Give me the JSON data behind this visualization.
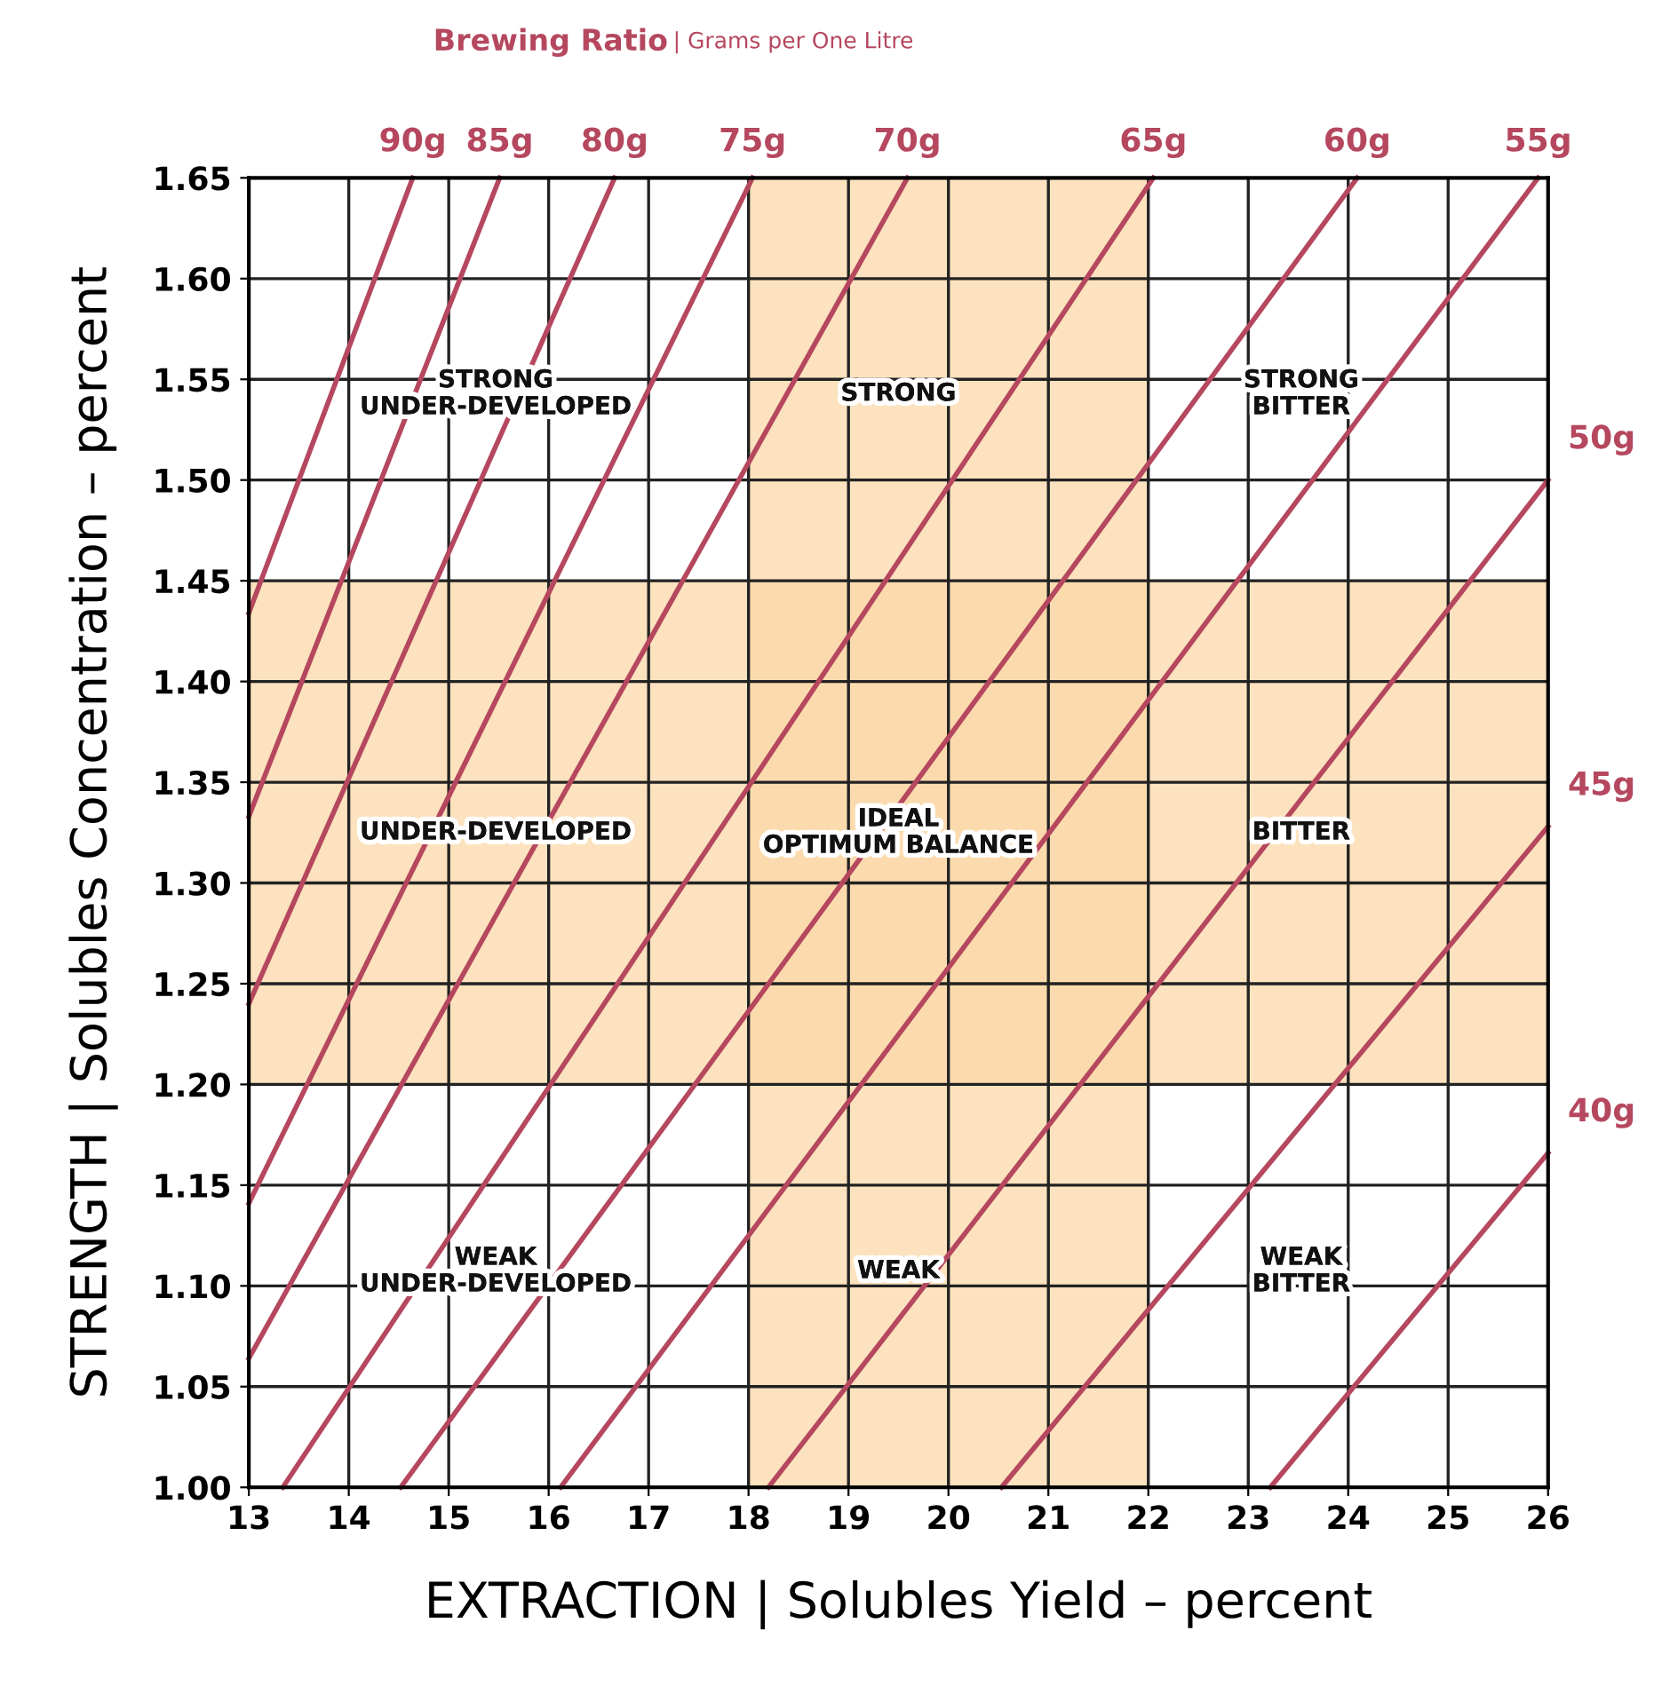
{
  "chart_data": {
    "type": "line",
    "title": "Brewing Ratio",
    "subtitle": "| Grams per One Litre",
    "xlabel": "EXTRACTION | Solubles Yield – percent",
    "ylabel": "STRENGTH | Solubles Concentration – percent",
    "xlim": [
      13,
      26
    ],
    "ylim": [
      1.0,
      1.65
    ],
    "xticks": [
      13,
      14,
      15,
      16,
      17,
      18,
      19,
      20,
      21,
      22,
      23,
      24,
      25,
      26
    ],
    "yticks": [
      {
        "value": 1.0,
        "label": "1.00"
      },
      1.05,
      {
        "value": 1.1,
        "label": "1.10"
      },
      1.15,
      {
        "value": 1.2,
        "label": "1.20"
      },
      1.25,
      {
        "value": 1.3,
        "label": "1.30"
      },
      1.35,
      {
        "value": 1.4,
        "label": "1.40"
      },
      1.45,
      {
        "value": 1.5,
        "label": "1.50"
      },
      1.55,
      {
        "value": 1.6,
        "label": "1.60"
      },
      1.65
    ],
    "grid": true,
    "legend": false,
    "marker": "none",
    "line_style": "solid",
    "series": [
      {
        "name": "90g",
        "color": "#b5475e",
        "x": [
          13,
          14.64
        ],
        "values": [
          1.434,
          1.65
        ]
      },
      {
        "name": "85g",
        "color": "#b5475e",
        "x": [
          13,
          15.51
        ],
        "values": [
          1.333,
          1.65
        ]
      },
      {
        "name": "80g",
        "color": "#b5475e",
        "x": [
          13,
          16.66
        ],
        "values": [
          1.24,
          1.65
        ]
      },
      {
        "name": "75g",
        "color": "#b5475e",
        "x": [
          13,
          18.04
        ],
        "values": [
          1.141,
          1.65
        ]
      },
      {
        "name": "70g",
        "color": "#b5475e",
        "x": [
          13,
          19.59
        ],
        "values": [
          1.064,
          1.65
        ]
      },
      {
        "name": "65g",
        "color": "#b5475e",
        "x": [
          13.34,
          22.05
        ],
        "values": [
          1.0,
          1.65
        ]
      },
      {
        "name": "60g",
        "color": "#b5475e",
        "x": [
          14.52,
          24.09
        ],
        "values": [
          1.0,
          1.65
        ]
      },
      {
        "name": "55g",
        "color": "#b5475e",
        "x": [
          16.12,
          25.9
        ],
        "values": [
          1.0,
          1.65
        ]
      },
      {
        "name": "50g",
        "color": "#b5475e",
        "x": [
          18.2,
          26
        ],
        "values": [
          1.0,
          1.5
        ]
      },
      {
        "name": "45g",
        "color": "#b5475e",
        "x": [
          20.53,
          26
        ],
        "values": [
          1.0,
          1.328
        ]
      },
      {
        "name": "40g",
        "color": "#b5475e",
        "x": [
          23.22,
          26
        ],
        "values": [
          1.0,
          1.166
        ]
      }
    ],
    "bands": [
      {
        "axis": "x",
        "from": 18,
        "to": 22,
        "color": "#fbd8a8"
      },
      {
        "axis": "y",
        "from": 1.2,
        "to": 1.45,
        "color": "#fbd8a8"
      }
    ],
    "annotations": [
      "STRONG\nUNDER-DEVELOPED",
      "STRONG",
      "STRONG\nBITTER",
      "UNDER-DEVELOPED",
      "IDEAL\nOPTIMUM BALANCE",
      "BITTER",
      "WEAK\nUNDER-DEVELOPED",
      "WEAK",
      "WEAK\nBITTER"
    ]
  }
}
